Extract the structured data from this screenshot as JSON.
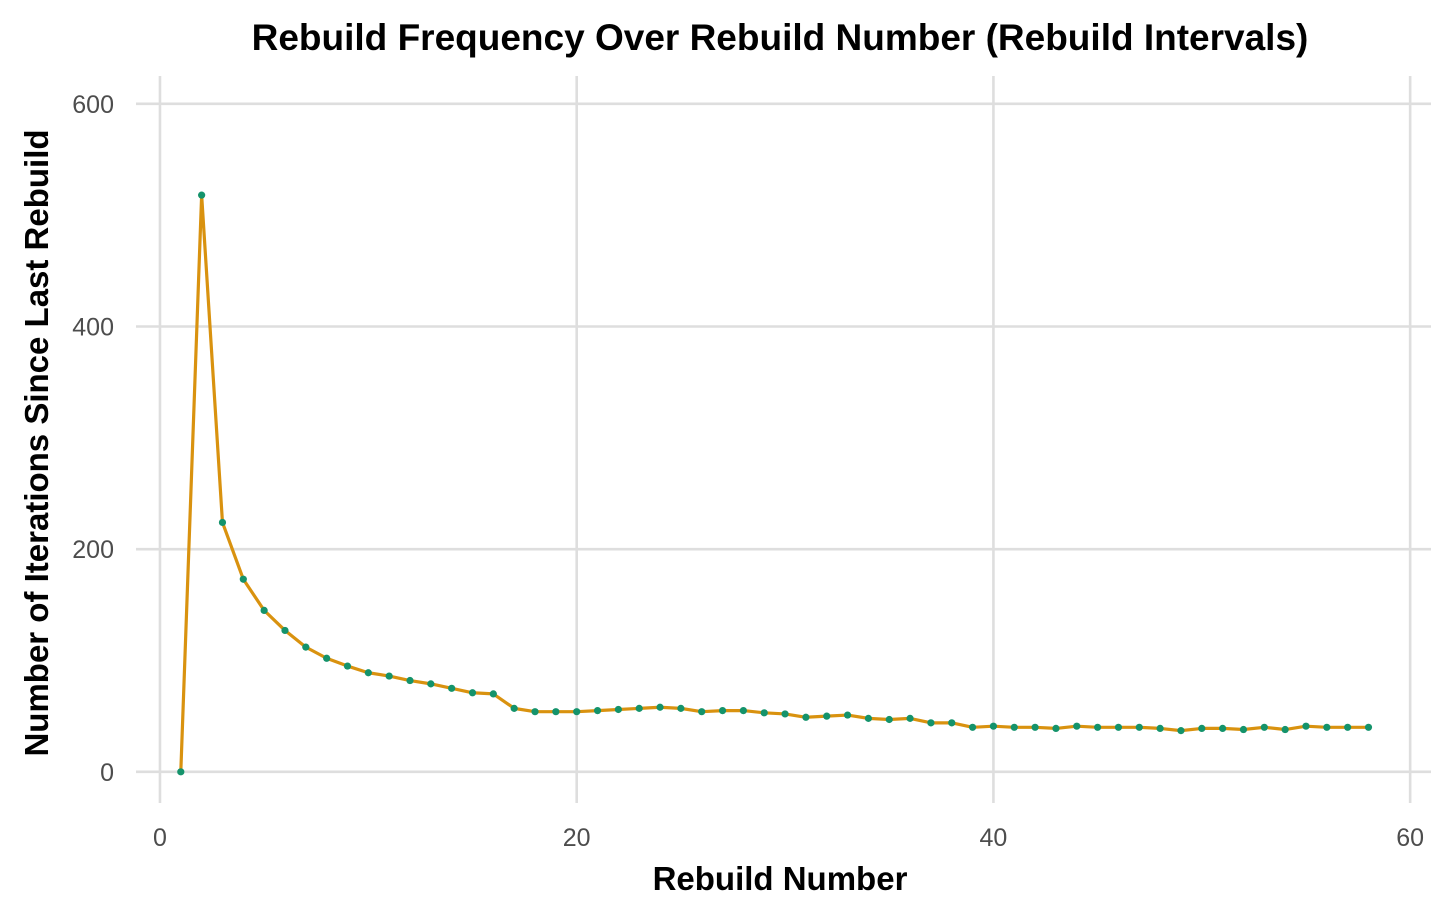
{
  "chart_data": {
    "type": "line",
    "title": "Rebuild Frequency Over Rebuild Number (Rebuild Intervals)",
    "xlabel": "Rebuild Number",
    "ylabel": "Number of Iterations Since Last Rebuild",
    "xlim": [
      -1.15,
      61.0
    ],
    "ylim": [
      -28,
      625
    ],
    "xticks": [
      0,
      20,
      40,
      60
    ],
    "yticks": [
      0,
      200,
      400,
      600
    ],
    "grid": true,
    "line_color": "#D9920F",
    "point_color": "#14936B",
    "x": [
      1,
      2,
      3,
      4,
      5,
      6,
      7,
      8,
      9,
      10,
      11,
      12,
      13,
      14,
      15,
      16,
      17,
      18,
      19,
      20,
      21,
      22,
      23,
      24,
      25,
      26,
      27,
      28,
      29,
      30,
      31,
      32,
      33,
      34,
      35,
      36,
      37,
      38,
      39,
      40,
      41,
      42,
      43,
      44,
      45,
      46,
      47,
      48,
      49,
      50,
      51,
      52,
      53,
      54,
      55,
      56,
      57,
      58
    ],
    "values": [
      0,
      518,
      224,
      173,
      145,
      127,
      112,
      102,
      95,
      89,
      86,
      82,
      79,
      75,
      71,
      70,
      57,
      54,
      54,
      54,
      55,
      56,
      57,
      58,
      57,
      54,
      55,
      55,
      53,
      52,
      49,
      50,
      51,
      48,
      47,
      48,
      44,
      44,
      40,
      41,
      40,
      40,
      39,
      41,
      40,
      40,
      40,
      39,
      37,
      39,
      39,
      38,
      40,
      38,
      41,
      40,
      40,
      40
    ]
  }
}
